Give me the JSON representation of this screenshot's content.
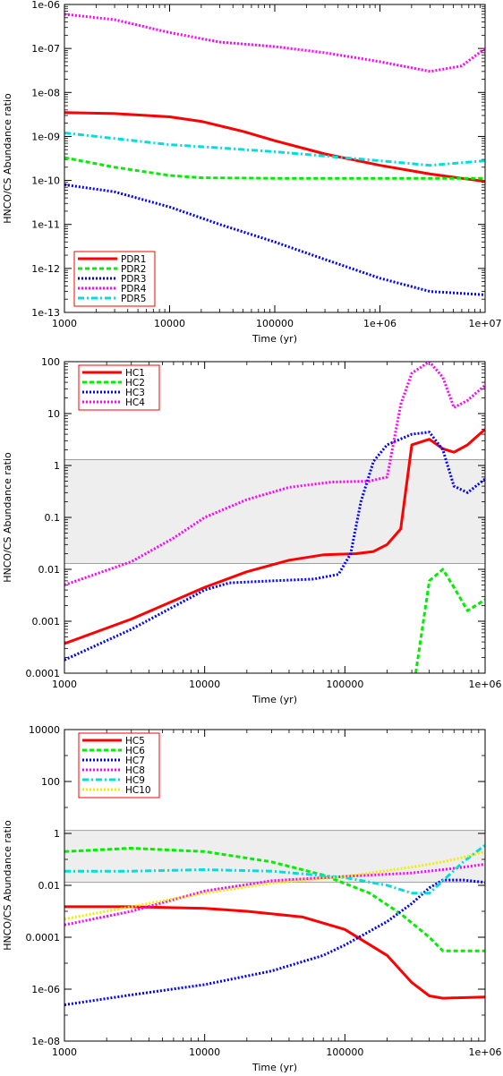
{
  "chart_data": [
    {
      "type": "line",
      "xlabel": "Time (yr)",
      "ylabel": "HNCO/CS Abundance ratio",
      "x_scale": "log",
      "y_scale": "log",
      "xlim": [
        1000,
        10000000
      ],
      "ylim": [
        1e-13,
        1e-06
      ],
      "x_ticks": [
        {
          "value": 1000,
          "label": "1000"
        },
        {
          "value": 10000,
          "label": "10000"
        },
        {
          "value": 100000,
          "label": "100000"
        },
        {
          "value": 1000000,
          "label": "1e+06"
        },
        {
          "value": 10000000,
          "label": "1e+07"
        }
      ],
      "y_ticks": [
        {
          "value": 1e-13,
          "label": "1e-13"
        },
        {
          "value": 1e-12,
          "label": "1e-12"
        },
        {
          "value": 1e-11,
          "label": "1e-11"
        },
        {
          "value": 1e-10,
          "label": "1e-10"
        },
        {
          "value": 1e-09,
          "label": "1e-09"
        },
        {
          "value": 1e-08,
          "label": "1e-08"
        },
        {
          "value": 1e-07,
          "label": "1e-07"
        },
        {
          "value": 1e-06,
          "label": "1e-06"
        }
      ],
      "legend_position": "bottom-left",
      "shaded_band": null,
      "series": [
        {
          "name": "PDR1",
          "color": "#ff0000",
          "dash": "solid",
          "points": [
            [
              1000,
              3.5e-09
            ],
            [
              3000,
              3.3e-09
            ],
            [
              10000,
              2.8e-09
            ],
            [
              20000,
              2.2e-09
            ],
            [
              50000,
              1.3e-09
            ],
            [
              100000,
              8e-10
            ],
            [
              300000,
              4e-10
            ],
            [
              1000000,
              2.2e-10
            ],
            [
              3000000,
              1.4e-10
            ],
            [
              10000000,
              9.5e-11
            ]
          ]
        },
        {
          "name": "PDR2",
          "color": "#00ee00",
          "dash": "dash",
          "points": [
            [
              1000,
              3.3e-10
            ],
            [
              3000,
              2e-10
            ],
            [
              10000,
              1.3e-10
            ],
            [
              20000,
              1.15e-10
            ],
            [
              100000,
              1.12e-10
            ],
            [
              1000000,
              1.12e-10
            ],
            [
              10000000,
              1.12e-10
            ]
          ]
        },
        {
          "name": "PDR3",
          "color": "#0000ff",
          "dash": "dot",
          "points": [
            [
              1000,
              8e-11
            ],
            [
              3000,
              5.5e-11
            ],
            [
              10000,
              2.5e-11
            ],
            [
              30000,
              1e-11
            ],
            [
              100000,
              4e-12
            ],
            [
              300000,
              1.6e-12
            ],
            [
              1000000,
              6e-13
            ],
            [
              3000000,
              3e-13
            ],
            [
              10000000,
              2.5e-13
            ]
          ]
        },
        {
          "name": "PDR4",
          "color": "#ff00ff",
          "dash": "dot",
          "points": [
            [
              1000,
              6e-07
            ],
            [
              3000,
              4.5e-07
            ],
            [
              10000,
              2.3e-07
            ],
            [
              30000,
              1.4e-07
            ],
            [
              100000,
              1.1e-07
            ],
            [
              300000,
              8e-08
            ],
            [
              1000000,
              5e-08
            ],
            [
              3000000,
              3e-08
            ],
            [
              6000000,
              4e-08
            ],
            [
              10000000,
              1e-07
            ]
          ]
        },
        {
          "name": "PDR5",
          "color": "#00dddd",
          "dash": "dashdot",
          "points": [
            [
              1000,
              1.2e-09
            ],
            [
              3000,
              9e-10
            ],
            [
              10000,
              6.5e-10
            ],
            [
              30000,
              5.5e-10
            ],
            [
              100000,
              4.5e-10
            ],
            [
              1000000,
              2.8e-10
            ],
            [
              3000000,
              2.2e-10
            ],
            [
              10000000,
              2.8e-10
            ]
          ]
        }
      ]
    },
    {
      "type": "line",
      "xlabel": "Time (yr)",
      "ylabel": "HNCO/CS Abundance ratio",
      "x_scale": "log",
      "y_scale": "log",
      "xlim": [
        1000,
        1000000
      ],
      "ylim": [
        0.0001,
        100
      ],
      "x_ticks": [
        {
          "value": 1000,
          "label": "1000"
        },
        {
          "value": 10000,
          "label": "10000"
        },
        {
          "value": 100000,
          "label": "100000"
        },
        {
          "value": 1000000,
          "label": "1e+06"
        }
      ],
      "y_ticks": [
        {
          "value": 0.0001,
          "label": "0.0001"
        },
        {
          "value": 0.001,
          "label": "0.001"
        },
        {
          "value": 0.01,
          "label": "0.01"
        },
        {
          "value": 0.1,
          "label": "0.1"
        },
        {
          "value": 1,
          "label": "1"
        },
        {
          "value": 10,
          "label": "10"
        },
        {
          "value": 100,
          "label": "100"
        }
      ],
      "legend_position": "top-left",
      "shaded_band": [
        0.013,
        1.3
      ],
      "series": [
        {
          "name": "HC1",
          "color": "#ff0000",
          "dash": "solid",
          "points": [
            [
              1000,
              0.00037
            ],
            [
              3000,
              0.0011
            ],
            [
              10000,
              0.0045
            ],
            [
              20000,
              0.009
            ],
            [
              40000,
              0.015
            ],
            [
              70000,
              0.019
            ],
            [
              120000,
              0.02
            ],
            [
              160000,
              0.022
            ],
            [
              200000,
              0.03
            ],
            [
              250000,
              0.06
            ],
            [
              300000,
              2.5
            ],
            [
              400000,
              3.2
            ],
            [
              500000,
              2.1
            ],
            [
              600000,
              1.8
            ],
            [
              750000,
              2.5
            ],
            [
              1000000,
              5
            ]
          ]
        },
        {
          "name": "HC2",
          "color": "#00ee00",
          "dash": "dash",
          "points": [
            [
              320000,
              0.0001
            ],
            [
              400000,
              0.006
            ],
            [
              500000,
              0.01
            ],
            [
              600000,
              0.0045
            ],
            [
              750000,
              0.0016
            ],
            [
              1000000,
              0.0026
            ]
          ]
        },
        {
          "name": "HC3",
          "color": "#0000ff",
          "dash": "dot",
          "points": [
            [
              1000,
              0.00018
            ],
            [
              3000,
              0.0007
            ],
            [
              10000,
              0.004
            ],
            [
              15000,
              0.0055
            ],
            [
              30000,
              0.006
            ],
            [
              60000,
              0.0065
            ],
            [
              90000,
              0.008
            ],
            [
              110000,
              0.02
            ],
            [
              130000,
              0.2
            ],
            [
              160000,
              1.2
            ],
            [
              200000,
              2.5
            ],
            [
              300000,
              4
            ],
            [
              400000,
              4.4
            ],
            [
              500000,
              2
            ],
            [
              600000,
              0.4
            ],
            [
              750000,
              0.3
            ],
            [
              1000000,
              0.55
            ]
          ]
        },
        {
          "name": "HC4",
          "color": "#ff00ff",
          "dash": "dot",
          "points": [
            [
              1000,
              0.005
            ],
            [
              3000,
              0.014
            ],
            [
              6000,
              0.04
            ],
            [
              10000,
              0.1
            ],
            [
              20000,
              0.22
            ],
            [
              40000,
              0.38
            ],
            [
              80000,
              0.48
            ],
            [
              150000,
              0.5
            ],
            [
              200000,
              0.6
            ],
            [
              250000,
              15
            ],
            [
              300000,
              60
            ],
            [
              400000,
              100
            ],
            [
              500000,
              50
            ],
            [
              600000,
              13
            ],
            [
              750000,
              18
            ],
            [
              1000000,
              35
            ]
          ]
        }
      ]
    },
    {
      "type": "line",
      "xlabel": "Time (yr)",
      "ylabel": "HNCO/CS Abundance ratio",
      "x_scale": "log",
      "y_scale": "log",
      "xlim": [
        1000,
        1000000
      ],
      "ylim": [
        1e-08,
        10000
      ],
      "x_ticks": [
        {
          "value": 1000,
          "label": "1000"
        },
        {
          "value": 10000,
          "label": "10000"
        },
        {
          "value": 100000,
          "label": "100000"
        },
        {
          "value": 1000000,
          "label": "1e+06"
        }
      ],
      "y_ticks": [
        {
          "value": 1e-08,
          "label": "1e-08"
        },
        {
          "value": 1e-06,
          "label": "1e-06"
        },
        {
          "value": 0.0001,
          "label": "0.0001"
        },
        {
          "value": 0.01,
          "label": "0.01"
        },
        {
          "value": 1,
          "label": "1"
        },
        {
          "value": 100,
          "label": "100"
        },
        {
          "value": 10000,
          "label": "10000"
        }
      ],
      "legend_position": "top-left",
      "shaded_band": [
        0.013,
        1.3
      ],
      "series": [
        {
          "name": "HC5",
          "color": "#ff0000",
          "dash": "solid",
          "points": [
            [
              1000,
              0.0015
            ],
            [
              3000,
              0.0015
            ],
            [
              10000,
              0.0013
            ],
            [
              20000,
              0.001
            ],
            [
              50000,
              0.0006
            ],
            [
              100000,
              0.0002
            ],
            [
              200000,
              2e-05
            ],
            [
              300000,
              1.8e-06
            ],
            [
              400000,
              5.5e-07
            ],
            [
              500000,
              4.5e-07
            ],
            [
              1000000,
              5e-07
            ]
          ]
        },
        {
          "name": "HC6",
          "color": "#00ee00",
          "dash": "dash",
          "points": [
            [
              1000,
              0.2
            ],
            [
              3000,
              0.27
            ],
            [
              10000,
              0.2
            ],
            [
              30000,
              0.08
            ],
            [
              70000,
              0.025
            ],
            [
              150000,
              0.005
            ],
            [
              250000,
              0.0008
            ],
            [
              400000,
              0.0001
            ],
            [
              500000,
              3e-05
            ],
            [
              1000000,
              3e-05
            ]
          ]
        },
        {
          "name": "HC7",
          "color": "#0000ff",
          "dash": "dot",
          "points": [
            [
              1000,
              2.5e-07
            ],
            [
              3000,
              6e-07
            ],
            [
              10000,
              1.5e-06
            ],
            [
              30000,
              5e-06
            ],
            [
              70000,
              2e-05
            ],
            [
              100000,
              5e-05
            ],
            [
              200000,
              0.0004
            ],
            [
              300000,
              0.002
            ],
            [
              400000,
              0.008
            ],
            [
              500000,
              0.016
            ],
            [
              700000,
              0.016
            ],
            [
              1000000,
              0.013
            ]
          ]
        },
        {
          "name": "HC8",
          "color": "#ff00ff",
          "dash": "dot",
          "points": [
            [
              1000,
              0.0003
            ],
            [
              3000,
              0.001
            ],
            [
              10000,
              0.006
            ],
            [
              30000,
              0.015
            ],
            [
              100000,
              0.022
            ],
            [
              300000,
              0.03
            ],
            [
              500000,
              0.04
            ],
            [
              700000,
              0.05
            ],
            [
              1000000,
              0.065
            ]
          ]
        },
        {
          "name": "HC9",
          "color": "#00dddd",
          "dash": "dashdot",
          "points": [
            [
              1000,
              0.035
            ],
            [
              3000,
              0.035
            ],
            [
              10000,
              0.04
            ],
            [
              30000,
              0.035
            ],
            [
              100000,
              0.02
            ],
            [
              200000,
              0.01
            ],
            [
              300000,
              0.005
            ],
            [
              400000,
              0.005
            ],
            [
              500000,
              0.015
            ],
            [
              700000,
              0.08
            ],
            [
              1000000,
              0.35
            ]
          ]
        },
        {
          "name": "HC10",
          "color": "#eeee00",
          "dash": "dot",
          "points": [
            [
              1000,
              0.0005
            ],
            [
              3000,
              0.0015
            ],
            [
              10000,
              0.005
            ],
            [
              30000,
              0.012
            ],
            [
              100000,
              0.022
            ],
            [
              300000,
              0.05
            ],
            [
              500000,
              0.08
            ],
            [
              700000,
              0.12
            ],
            [
              1000000,
              0.2
            ]
          ]
        }
      ]
    }
  ]
}
